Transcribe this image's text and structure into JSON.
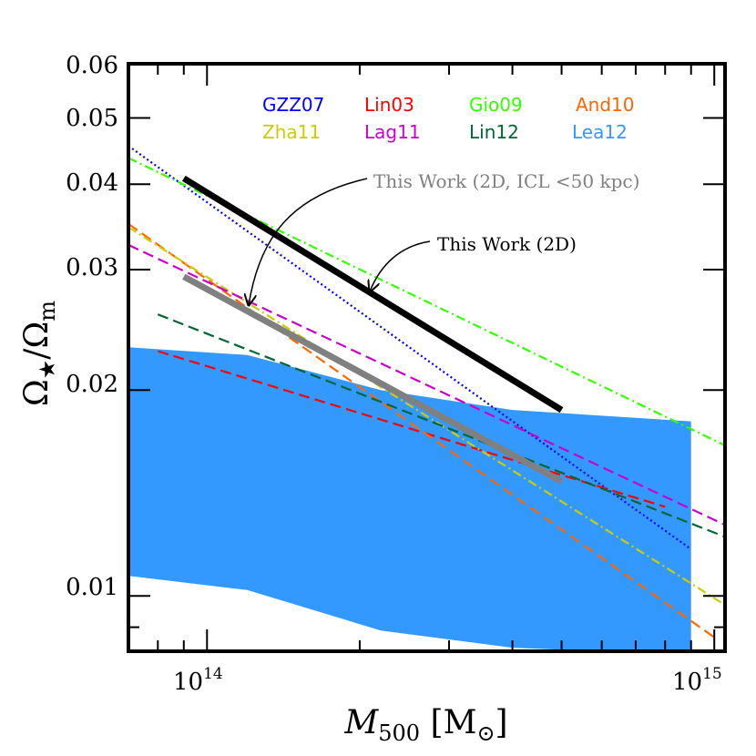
{
  "chart_data": {
    "type": "line",
    "title": "",
    "xlabel": "M500 [M☉]",
    "ylabel": "Ω★/Ωm",
    "xscale": "log",
    "yscale": "log",
    "xlim": [
      70000000000000.0,
      1050000000000000.0
    ],
    "ylim": [
      0.0083,
      0.06
    ],
    "y_ticks": [
      {
        "value": 0.01,
        "label": "0.01"
      },
      {
        "value": 0.02,
        "label": "0.02"
      },
      {
        "value": 0.03,
        "label": "0.03"
      },
      {
        "value": 0.04,
        "label": "0.04"
      },
      {
        "value": 0.05,
        "label": "0.05"
      },
      {
        "value": 0.06,
        "label": "0.06"
      }
    ],
    "x_ticks": [
      {
        "value": 100000000000000.0,
        "mantissa": "10",
        "exponent": "14"
      },
      {
        "value": 1000000000000000.0,
        "mantissa": "10",
        "exponent": "15"
      }
    ],
    "legend_position": "top-center",
    "series": [
      {
        "name": "GZZ07",
        "color": "#0000ff",
        "style": "dotted",
        "x": [
          70000000000000.0,
          900000000000000.0
        ],
        "y": [
          0.0455,
          0.0117
        ]
      },
      {
        "name": "Lin03",
        "color": "#ff0000",
        "style": "dashed",
        "x": [
          80000000000000.0,
          800000000000000.0
        ],
        "y": [
          0.0228,
          0.0135
        ]
      },
      {
        "name": "Gio09",
        "color": "#33ff00",
        "style": "dashdot",
        "x": [
          70000000000000.0,
          1050000000000000.0
        ],
        "y": [
          0.0437,
          0.0166
        ]
      },
      {
        "name": "And10",
        "color": "#ff6600",
        "style": "dashed",
        "x": [
          70000000000000.0,
          1000000000000000.0
        ],
        "y": [
          0.035,
          0.0087
        ]
      },
      {
        "name": "Zha11",
        "color": "#cccc00",
        "style": "dashdot",
        "x": [
          70000000000000.0,
          1050000000000000.0
        ],
        "y": [
          0.0346,
          0.0097
        ]
      },
      {
        "name": "Lag11",
        "color": "#cc00cc",
        "style": "dashed",
        "x": [
          70000000000000.0,
          1050000000000000.0
        ],
        "y": [
          0.0326,
          0.0127
        ]
      },
      {
        "name": "Lin12",
        "color": "#006633",
        "style": "dashed",
        "x": [
          80000000000000.0,
          1050000000000000.0
        ],
        "y": [
          0.0258,
          0.0122
        ]
      },
      {
        "name": "This Work (2D)",
        "color": "#000000",
        "style": "solid",
        "width": 7,
        "x": [
          90000000000000.0,
          500000000000000.0
        ],
        "y": [
          0.0408,
          0.0187
        ]
      },
      {
        "name": "This Work (2D, ICL <50 kpc)",
        "color": "#808080",
        "style": "solid",
        "width": 7,
        "x": [
          90000000000000.0,
          500000000000000.0
        ],
        "y": [
          0.0293,
          0.0147
        ]
      }
    ],
    "band": {
      "name": "Lea12",
      "color": "#3399ff",
      "upper": {
        "x": [
          70000000000000.0,
          120000000000000.0,
          220000000000000.0,
          400000000000000.0,
          900000000000000.0
        ],
        "y": [
          0.0231,
          0.0225,
          0.02,
          0.0187,
          0.018
        ]
      },
      "lower": {
        "x": [
          70000000000000.0,
          120000000000000.0,
          220000000000000.0,
          400000000000000.0,
          900000000000000.0
        ],
        "y": [
          0.0107,
          0.0102,
          0.0089,
          0.0084,
          0.0082
        ]
      }
    },
    "legend": [
      {
        "label": "GZZ07",
        "color": "#0000ff"
      },
      {
        "label": "Lin03",
        "color": "#ff0000"
      },
      {
        "label": "Gio09",
        "color": "#33ff00"
      },
      {
        "label": "And10",
        "color": "#ff6600"
      },
      {
        "label": "Zha11",
        "color": "#cccc00"
      },
      {
        "label": "Lag11",
        "color": "#cc00cc"
      },
      {
        "label": "Lin12",
        "color": "#006633"
      },
      {
        "label": "Lea12",
        "color": "#3399ff"
      }
    ],
    "annotations": [
      {
        "text": "This Work (2D, ICL <50 kpc)",
        "color": "#808080",
        "points_to": "This Work (2D, ICL <50 kpc)"
      },
      {
        "text": "This Work (2D)",
        "color": "#000000",
        "points_to": "This Work (2D)"
      }
    ]
  }
}
